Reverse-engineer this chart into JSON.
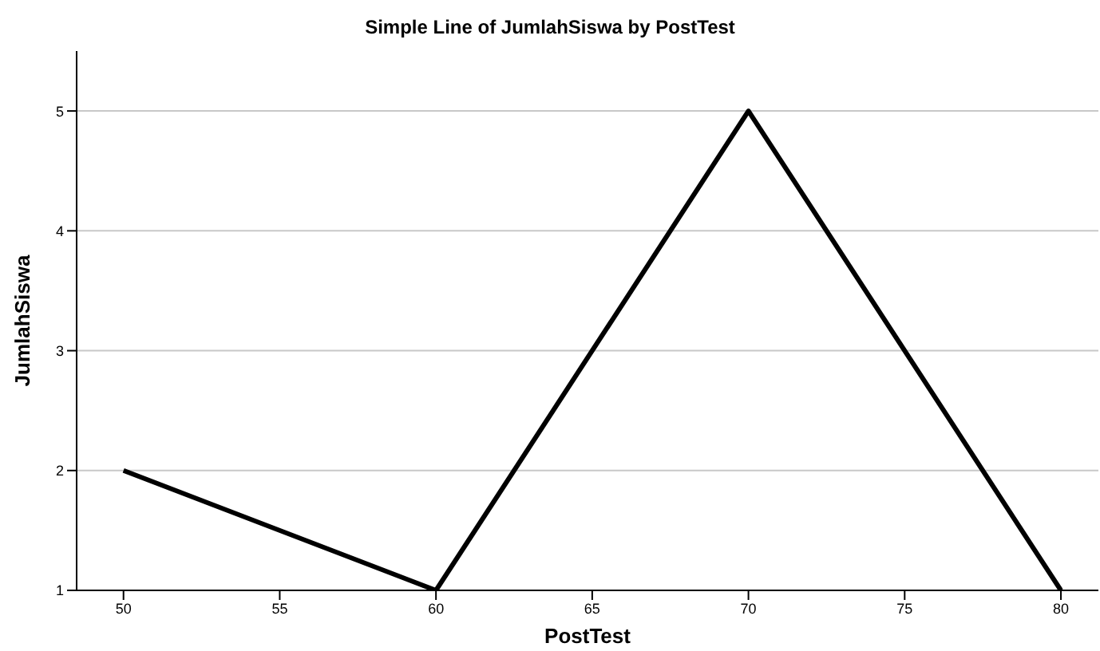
{
  "chart_data": {
    "type": "line",
    "title": "Simple Line of JumlahSiswa by PostTest",
    "xlabel": "PostTest",
    "ylabel": "JumlahSiswa",
    "x": [
      50,
      60,
      70,
      80
    ],
    "series": [
      {
        "color": "#000000",
        "values": [
          2,
          1,
          5,
          1
        ]
      }
    ],
    "xlim": [
      48.5,
      81.2
    ],
    "xticks": [
      50,
      55,
      60,
      65,
      70,
      75,
      80
    ],
    "ylim": [
      1,
      5.5
    ],
    "yticks": [
      1,
      2,
      3,
      4,
      5
    ],
    "grid": "y",
    "marker": "none",
    "line_style": "solid"
  }
}
